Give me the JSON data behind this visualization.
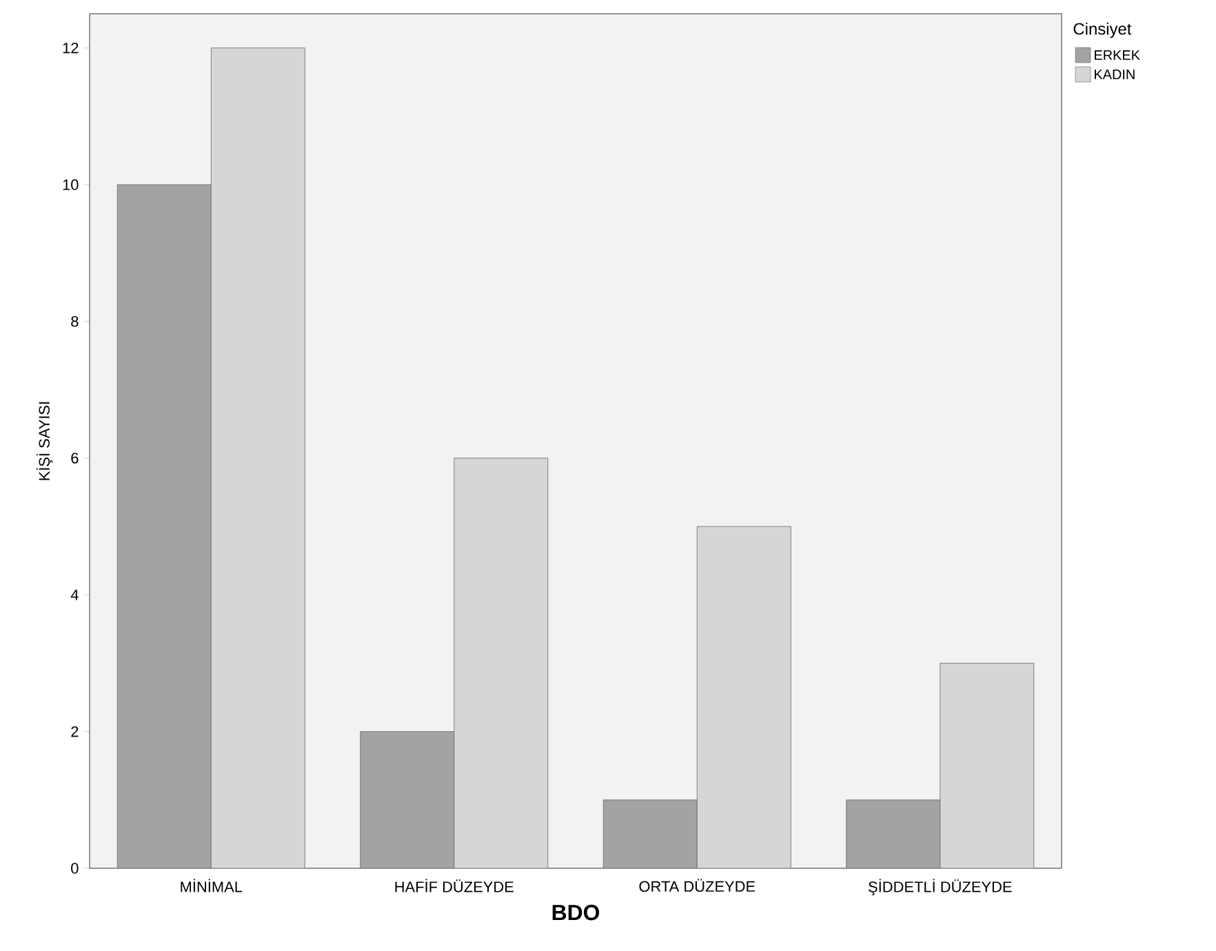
{
  "chart_data": {
    "type": "bar",
    "xlabel": "BDO",
    "ylabel": "KİŞİ SAYISI",
    "legend_title": "Cinsiyet",
    "legend": "top right",
    "categories": [
      "MİNİMAL",
      "HAFİF DÜZEYDE",
      "ORTA DÜZEYDE",
      "ŞİDDETLİ DÜZEYDE"
    ],
    "series": [
      {
        "name": "ERKEK",
        "color": "#a3a3a3",
        "values": [
          10,
          2,
          1,
          1
        ]
      },
      {
        "name": "KADIN",
        "color": "#d6d6d6",
        "values": [
          12,
          6,
          5,
          3
        ]
      }
    ],
    "ylim": [
      0,
      12.5
    ],
    "yticks": [
      0,
      2,
      4,
      6,
      8,
      10,
      12
    ],
    "grid": false
  }
}
